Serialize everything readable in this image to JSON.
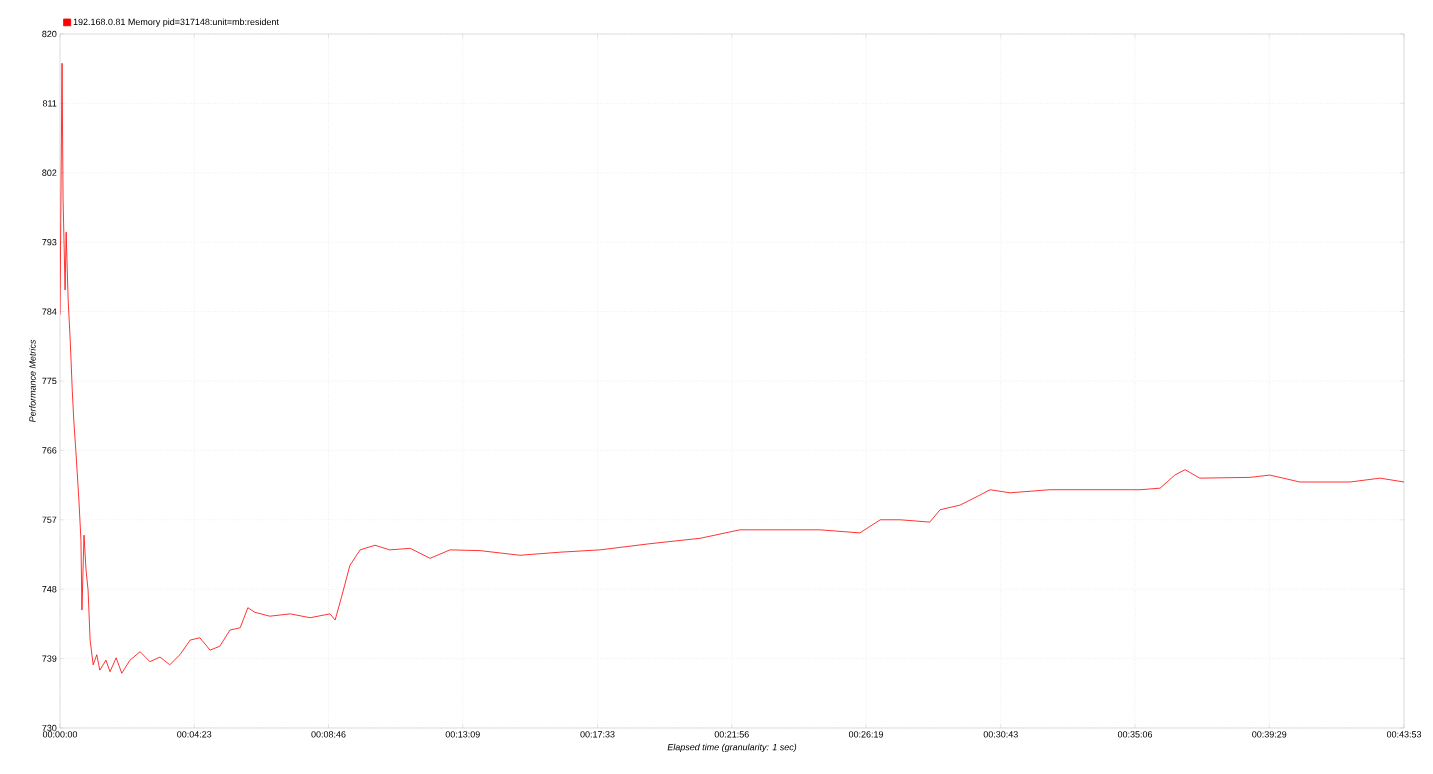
{
  "chart_data": {
    "type": "line",
    "xlabel": "Elapsed time (granularity: 1 sec)",
    "ylabel": "Performance Metrics",
    "x": [
      0,
      4,
      6,
      10,
      12,
      16,
      20,
      24,
      27,
      31,
      37,
      41,
      43,
      47,
      51,
      55,
      59,
      65,
      72,
      78,
      90,
      98,
      110,
      121,
      137,
      157,
      176,
      196,
      215,
      235,
      255,
      274,
      294,
      313,
      333,
      353,
      368,
      382,
      411,
      451,
      490,
      529,
      539,
      552,
      568,
      588,
      617,
      646,
      686,
      725,
      764,
      823,
      901,
      980,
      1058,
      1156,
      1254,
      1332,
      1411,
      1489,
      1567,
      1607,
      1646,
      1704,
      1724,
      1763,
      1802,
      1822,
      1861,
      1939,
      2037,
      2116,
      2155,
      2184,
      2204,
      2233,
      2331,
      2370,
      2429,
      2527,
      2586,
      2633
    ],
    "series": [
      {
        "name": "192.168.0.81 Memory pid=317148:unit=mb:resident",
        "color": "#ff0000",
        "values": [
          783.6,
          816.2,
          798.5,
          786.8,
          794.3,
          785.5,
          780.3,
          773.8,
          769.9,
          766,
          759.6,
          754.4,
          745.3,
          755,
          750.5,
          747.9,
          741.4,
          738.2,
          739.5,
          737.5,
          738.8,
          737.3,
          739.1,
          737.1,
          738.8,
          739.9,
          738.6,
          739.2,
          738.2,
          739.5,
          741.4,
          741.7,
          740.1,
          740.6,
          742.7,
          743,
          745.6,
          745,
          744.5,
          744.8,
          744.3,
          744.8,
          744,
          747.1,
          751.1,
          753.1,
          753.7,
          753.1,
          753.3,
          752,
          753.1,
          753,
          752.4,
          752.8,
          753.1,
          753.9,
          754.6,
          755.7,
          755.7,
          755.7,
          755.3,
          757,
          757,
          756.7,
          758.3,
          758.9,
          760.2,
          760.9,
          760.5,
          760.9,
          760.9,
          760.9,
          761.1,
          762.8,
          763.5,
          762.4,
          762.5,
          762.8,
          761.9,
          761.9,
          762.4,
          761.9
        ]
      }
    ],
    "xlim": [
      0,
      2633
    ],
    "ylim": [
      730,
      820
    ],
    "xticks": [
      {
        "value": 0,
        "label": "00:00:00"
      },
      {
        "value": 263,
        "label": "00:04:23"
      },
      {
        "value": 526,
        "label": "00:08:46"
      },
      {
        "value": 789,
        "label": "00:13:09"
      },
      {
        "value": 1053,
        "label": "00:17:33"
      },
      {
        "value": 1316,
        "label": "00:21:56"
      },
      {
        "value": 1579,
        "label": "00:26:19"
      },
      {
        "value": 1843,
        "label": "00:30:43"
      },
      {
        "value": 2106,
        "label": "00:35:06"
      },
      {
        "value": 2369,
        "label": "00:39:29"
      },
      {
        "value": 2633,
        "label": "00:43:53"
      }
    ],
    "yticks": [
      730,
      739,
      748,
      757,
      766,
      775,
      784,
      793,
      802,
      811,
      820
    ],
    "grid": true,
    "legend": "top left",
    "marker": "none",
    "line_style": "solid"
  }
}
